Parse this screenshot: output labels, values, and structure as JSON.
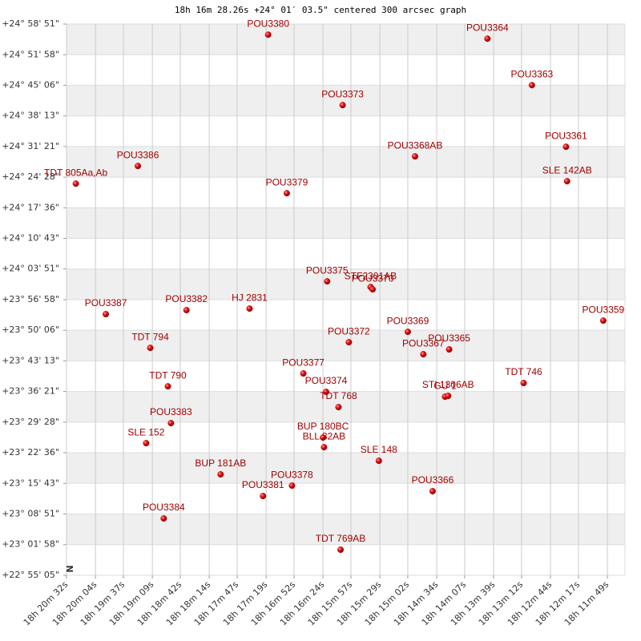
{
  "chart_data": {
    "type": "scatter",
    "title": "18h 16m 28.26s +24° 01′ 03.5\" centered 300 arcsec graph",
    "compass_label": "N",
    "color": "#cc0000",
    "label_color": "#a00000",
    "grid": true,
    "xlim": [
      1232,
      692
    ],
    "ylim": [
      3305,
      10731
    ],
    "xticks": [
      {
        "value": 1232,
        "label": "18h 20m 32s"
      },
      {
        "value": 1204,
        "label": "18h 20m 04s"
      },
      {
        "value": 1177,
        "label": "18h 19m 37s"
      },
      {
        "value": 1149,
        "label": "18h 19m 09s"
      },
      {
        "value": 1122,
        "label": "18h 18m 42s"
      },
      {
        "value": 1094,
        "label": "18h 18m 14s"
      },
      {
        "value": 1067,
        "label": "18h 17m 47s"
      },
      {
        "value": 1039,
        "label": "18h 17m 19s"
      },
      {
        "value": 1012,
        "label": "18h 16m 52s"
      },
      {
        "value": 984,
        "label": "18h 16m 24s"
      },
      {
        "value": 957,
        "label": "18h 15m 57s"
      },
      {
        "value": 929,
        "label": "18h 15m 29s"
      },
      {
        "value": 902,
        "label": "18h 15m 02s"
      },
      {
        "value": 874,
        "label": "18h 14m 34s"
      },
      {
        "value": 847,
        "label": "18h 14m 07s"
      },
      {
        "value": 819,
        "label": "18h 13m 39s"
      },
      {
        "value": 792,
        "label": "18h 13m 12s"
      },
      {
        "value": 764,
        "label": "18h 12m 44s"
      },
      {
        "value": 737,
        "label": "18h 12m 17s"
      },
      {
        "value": 709,
        "label": "18h 11m 49s"
      }
    ],
    "yticks": [
      {
        "value": 10731,
        "label": "+24° 58' 51\""
      },
      {
        "value": 10318,
        "label": "+24° 51' 58\""
      },
      {
        "value": 9906,
        "label": "+24° 45' 06\""
      },
      {
        "value": 9493,
        "label": "+24° 38' 13\""
      },
      {
        "value": 9081,
        "label": "+24° 31' 21\""
      },
      {
        "value": 8668,
        "label": "+24° 24' 28\""
      },
      {
        "value": 8256,
        "label": "+24° 17' 36\""
      },
      {
        "value": 7843,
        "label": "+24° 10' 43\""
      },
      {
        "value": 7431,
        "label": "+24° 03' 51\""
      },
      {
        "value": 7018,
        "label": "+23° 56' 58\""
      },
      {
        "value": 6606,
        "label": "+23° 50' 06\""
      },
      {
        "value": 6193,
        "label": "+23° 43' 13\""
      },
      {
        "value": 5781,
        "label": "+23° 36' 21\""
      },
      {
        "value": 5368,
        "label": "+23° 29' 28\""
      },
      {
        "value": 4956,
        "label": "+23° 22' 36\""
      },
      {
        "value": 4543,
        "label": "+23° 15' 43\""
      },
      {
        "value": 4131,
        "label": "+23° 08' 51\""
      },
      {
        "value": 3718,
        "label": "+23° 01' 58\""
      },
      {
        "value": 3305,
        "label": "+22° 55' 05\""
      }
    ],
    "points": [
      {
        "name": "TDT 805Aa,Ab",
        "x": 1223,
        "y": 8581
      },
      {
        "name": "POU3386",
        "x": 1163,
        "y": 8819
      },
      {
        "name": "POU3380",
        "x": 1037,
        "y": 10588
      },
      {
        "name": "POU3364",
        "x": 825,
        "y": 10534
      },
      {
        "name": "POU3363",
        "x": 782,
        "y": 9908
      },
      {
        "name": "POU3373",
        "x": 965,
        "y": 9639
      },
      {
        "name": "POU3368AB",
        "x": 895,
        "y": 8948
      },
      {
        "name": "POU3361",
        "x": 749,
        "y": 9078
      },
      {
        "name": "SLE 142AB",
        "x": 748,
        "y": 8614
      },
      {
        "name": "POU3379",
        "x": 1019,
        "y": 8452
      },
      {
        "name": "POU3375",
        "x": 980,
        "y": 7265
      },
      {
        "name": "STF2301AB",
        "x": 938,
        "y": 7189
      },
      {
        "name": "POU3370",
        "x": 936,
        "y": 7157
      },
      {
        "name": "POU3387",
        "x": 1194,
        "y": 6823
      },
      {
        "name": "POU3382",
        "x": 1116,
        "y": 6877
      },
      {
        "name": "HJ 2831",
        "x": 1055,
        "y": 6898
      },
      {
        "name": "POU3359",
        "x": 713,
        "y": 6736
      },
      {
        "name": "TDT 794",
        "x": 1151,
        "y": 6369
      },
      {
        "name": "POU3372",
        "x": 959,
        "y": 6445
      },
      {
        "name": "POU3369",
        "x": 902,
        "y": 6585
      },
      {
        "name": "POU3367",
        "x": 887,
        "y": 6283
      },
      {
        "name": "POU3365",
        "x": 862,
        "y": 6348
      },
      {
        "name": "POU3377",
        "x": 1003,
        "y": 6024
      },
      {
        "name": "TDT 790",
        "x": 1134,
        "y": 5851
      },
      {
        "name": "POU3374",
        "x": 981,
        "y": 5776
      },
      {
        "name": "TDT 746",
        "x": 790,
        "y": 5895
      },
      {
        "name": "GU 1",
        "x": 866,
        "y": 5711
      },
      {
        "name": "STI 1306AB",
        "x": 863,
        "y": 5722
      },
      {
        "name": "TDT 768",
        "x": 969,
        "y": 5571
      },
      {
        "name": "POU3383",
        "x": 1131,
        "y": 5355
      },
      {
        "name": "SLE 152",
        "x": 1155,
        "y": 5085
      },
      {
        "name": "BUP 180BC",
        "x": 984,
        "y": 5161
      },
      {
        "name": "BLL 32AB",
        "x": 983,
        "y": 5031
      },
      {
        "name": "SLE 148",
        "x": 930,
        "y": 4848
      },
      {
        "name": "BUP 181AB",
        "x": 1083,
        "y": 4665
      },
      {
        "name": "POU3378",
        "x": 1014,
        "y": 4513
      },
      {
        "name": "POU3381",
        "x": 1042,
        "y": 4373
      },
      {
        "name": "POU3366",
        "x": 878,
        "y": 4438
      },
      {
        "name": "POU3384",
        "x": 1138,
        "y": 4071
      },
      {
        "name": "TDT 769AB",
        "x": 967,
        "y": 3650
      }
    ]
  }
}
